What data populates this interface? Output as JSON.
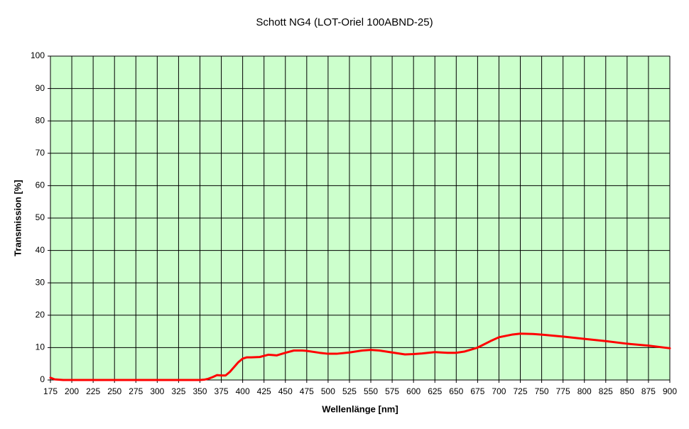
{
  "chart_data": {
    "type": "line",
    "title": "Schott NG4 (LOT-Oriel 100ABND-25)",
    "x_label": "Wellenlänge [nm]",
    "y_label": "Transmission [%]",
    "x": [
      175,
      180,
      190,
      200,
      225,
      250,
      275,
      300,
      325,
      350,
      355,
      360,
      365,
      370,
      375,
      380,
      385,
      390,
      395,
      400,
      405,
      410,
      420,
      430,
      440,
      450,
      460,
      470,
      475,
      490,
      500,
      510,
      525,
      540,
      550,
      560,
      575,
      590,
      600,
      610,
      625,
      640,
      650,
      660,
      665,
      675,
      690,
      700,
      715,
      725,
      740,
      750,
      775,
      800,
      825,
      850,
      875,
      900
    ],
    "series": [
      {
        "name": "Schott NG4",
        "color": "#ff0000",
        "values": [
          0.7,
          0.2,
          0,
          0,
          0,
          0,
          0,
          0,
          0,
          0,
          0.1,
          0.4,
          0.9,
          1.5,
          1.4,
          1.4,
          2.5,
          4.0,
          5.5,
          6.6,
          7.0,
          7.0,
          7.1,
          7.8,
          7.6,
          8.4,
          9.1,
          9.1,
          9.0,
          8.4,
          8.1,
          8.1,
          8.5,
          9.1,
          9.3,
          9.1,
          8.5,
          7.9,
          8.0,
          8.2,
          8.6,
          8.4,
          8.4,
          8.8,
          9.2,
          10.0,
          12.0,
          13.2,
          14.0,
          14.3,
          14.2,
          14.0,
          13.4,
          12.7,
          12.0,
          11.2,
          10.6,
          9.8
        ]
      }
    ],
    "xlim": [
      175,
      900
    ],
    "xticks": [
      175,
      200,
      225,
      250,
      275,
      300,
      325,
      350,
      375,
      400,
      425,
      450,
      475,
      500,
      525,
      550,
      575,
      600,
      625,
      650,
      675,
      700,
      725,
      750,
      775,
      800,
      825,
      850,
      875,
      900
    ],
    "ylim": [
      0,
      100
    ],
    "yticks": [
      0,
      10,
      20,
      30,
      40,
      50,
      60,
      70,
      80,
      90,
      100
    ],
    "grid": true,
    "plot_background": "#ccffcc"
  }
}
